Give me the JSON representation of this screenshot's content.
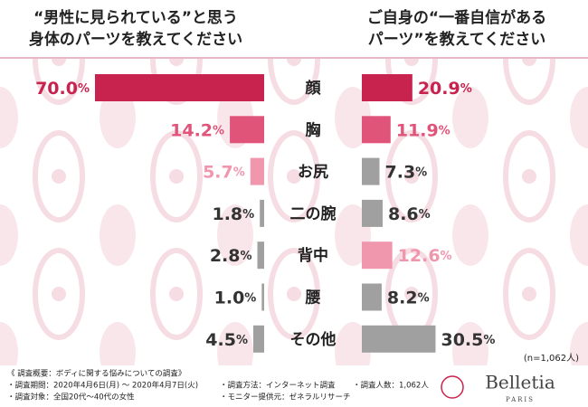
{
  "chart_data": [
    {
      "type": "bar",
      "title": [
        "“男性に見られている”と思う",
        "身体のパーツを教えてください"
      ],
      "categories": [
        "顔",
        "胸",
        "お尻",
        "二の腕",
        "背中",
        "腰",
        "その他"
      ],
      "values": [
        70.0,
        14.2,
        5.7,
        1.8,
        2.8,
        1.0,
        4.5
      ],
      "value_labels": [
        "70.0%",
        "14.2%",
        "5.7%",
        "1.8%",
        "2.8%",
        "1.0%",
        "4.5%"
      ],
      "colors": [
        "#c8234e",
        "#e0547a",
        "#f096ad",
        "#a0a0a0",
        "#a0a0a0",
        "#a0a0a0",
        "#a0a0a0"
      ],
      "label_colors": [
        "#c8234e",
        "#e0547a",
        "#f096ad",
        "#333333",
        "#333333",
        "#333333",
        "#333333"
      ],
      "xlim": [
        0,
        70
      ]
    },
    {
      "type": "bar",
      "title": [
        "ご自身の“一番自信がある",
        "パーツ”を教えてください"
      ],
      "categories": [
        "顔",
        "胸",
        "お尻",
        "二の腕",
        "背中",
        "腰",
        "その他"
      ],
      "values": [
        20.9,
        11.9,
        7.3,
        8.6,
        12.6,
        8.2,
        30.5
      ],
      "value_labels": [
        "20.9%",
        "11.9%",
        "7.3%",
        "8.6%",
        "12.6%",
        "8.2%",
        "30.5%"
      ],
      "colors": [
        "#c8234e",
        "#e0547a",
        "#a0a0a0",
        "#a0a0a0",
        "#f096ad",
        "#a0a0a0",
        "#a0a0a0"
      ],
      "label_colors": [
        "#c8234e",
        "#e0547a",
        "#333333",
        "#333333",
        "#f096ad",
        "#333333",
        "#333333"
      ],
      "xlim": [
        0,
        70
      ]
    }
  ],
  "note": "(n=1,062人)",
  "footer": {
    "heading": "《 調査概要：ボディに関する悩みについての調査》",
    "left": [
      "・調査期間：2020年4月6日(月) ～ 2020年4月7日(火)",
      "・調査対象：全国20代～40代の女性"
    ],
    "middle": [
      "・調査方法：インターネット調査",
      "・モニター提供元：ゼネラルリサーチ"
    ],
    "right": "・調査人数：1,062人"
  },
  "logo": {
    "name": "Belletia",
    "sub": "PARIS"
  }
}
